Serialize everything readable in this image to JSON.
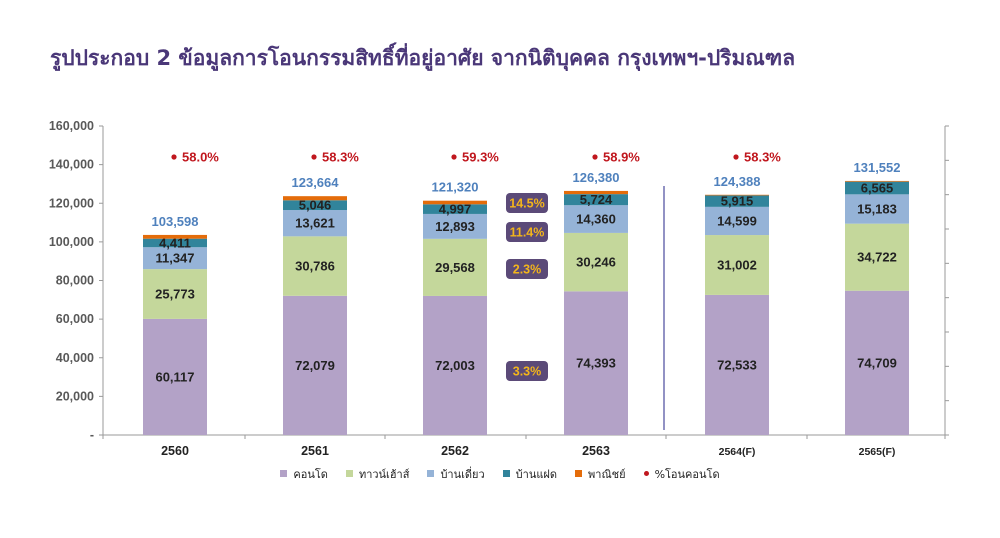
{
  "title": "รูปประกอบ 2 ข้อมูลการโอนกรรมสิทธิ์ที่อยู่อาศัย จากนิติบุคคล กรุงเทพฯ-ปริมณฑล",
  "chart_data": {
    "type": "bar",
    "stacked": true,
    "categories": [
      "2560",
      "2561",
      "2562",
      "2563",
      "2564(F)",
      "2565(F)"
    ],
    "ylim": [
      0,
      160000
    ],
    "yticks": [
      "-",
      "20,000",
      "40,000",
      "60,000",
      "80,000",
      "100,000",
      "120,000",
      "140,000",
      "160,000"
    ],
    "series": [
      {
        "name": "คอนโด",
        "color": "#b3a2c7",
        "values": [
          60117,
          72079,
          72003,
          74393,
          72533,
          74709
        ],
        "labels": [
          "60,117",
          "72,079",
          "72,003",
          "74,393",
          "72,533",
          "74,709"
        ]
      },
      {
        "name": "ทาวน์เฮ้าส์",
        "color": "#c4d79b",
        "values": [
          25773,
          30786,
          29568,
          30246,
          31002,
          34722
        ],
        "labels": [
          "25,773",
          "30,786",
          "29,568",
          "30,246",
          "31,002",
          "34,722"
        ]
      },
      {
        "name": "บ้านเดี่ยว",
        "color": "#95b3d7",
        "values": [
          11347,
          13621,
          12893,
          14360,
          14599,
          15183
        ],
        "labels": [
          "11,347",
          "13,621",
          "12,893",
          "14,360",
          "14,599",
          "15,183"
        ]
      },
      {
        "name": "บ้านแฝด",
        "color": "#31849b",
        "values": [
          4411,
          5046,
          4997,
          5724,
          5915,
          6565
        ],
        "labels": [
          "4,411",
          "5,046",
          "4,997",
          "5,724",
          "5,915",
          "6,565"
        ]
      },
      {
        "name": "พาณิชย์",
        "color": "#e46c0a",
        "values": [
          1950,
          2132,
          1859,
          1657,
          339,
          373
        ],
        "labels": [
          "",
          "",
          "",
          "",
          "",
          ""
        ]
      }
    ],
    "totals": [
      103598,
      123664,
      121320,
      126380,
      124388,
      131552
    ],
    "total_labels": [
      "103,598",
      "123,664",
      "121,320",
      "126,380",
      "124,388",
      "131,552"
    ],
    "pct_condo": {
      "name": "%โอนคอนโด",
      "color": "#c0171e",
      "labels": [
        "58.0%",
        "58.3%",
        "59.3%",
        "58.9%",
        "58.3%",
        ""
      ]
    },
    "growth_badges": {
      "color": "#5b4a78",
      "text_color": "#f3b51b",
      "labels": [
        "14.5%",
        "11.4%",
        "2.3%",
        "3.3%"
      ]
    }
  }
}
